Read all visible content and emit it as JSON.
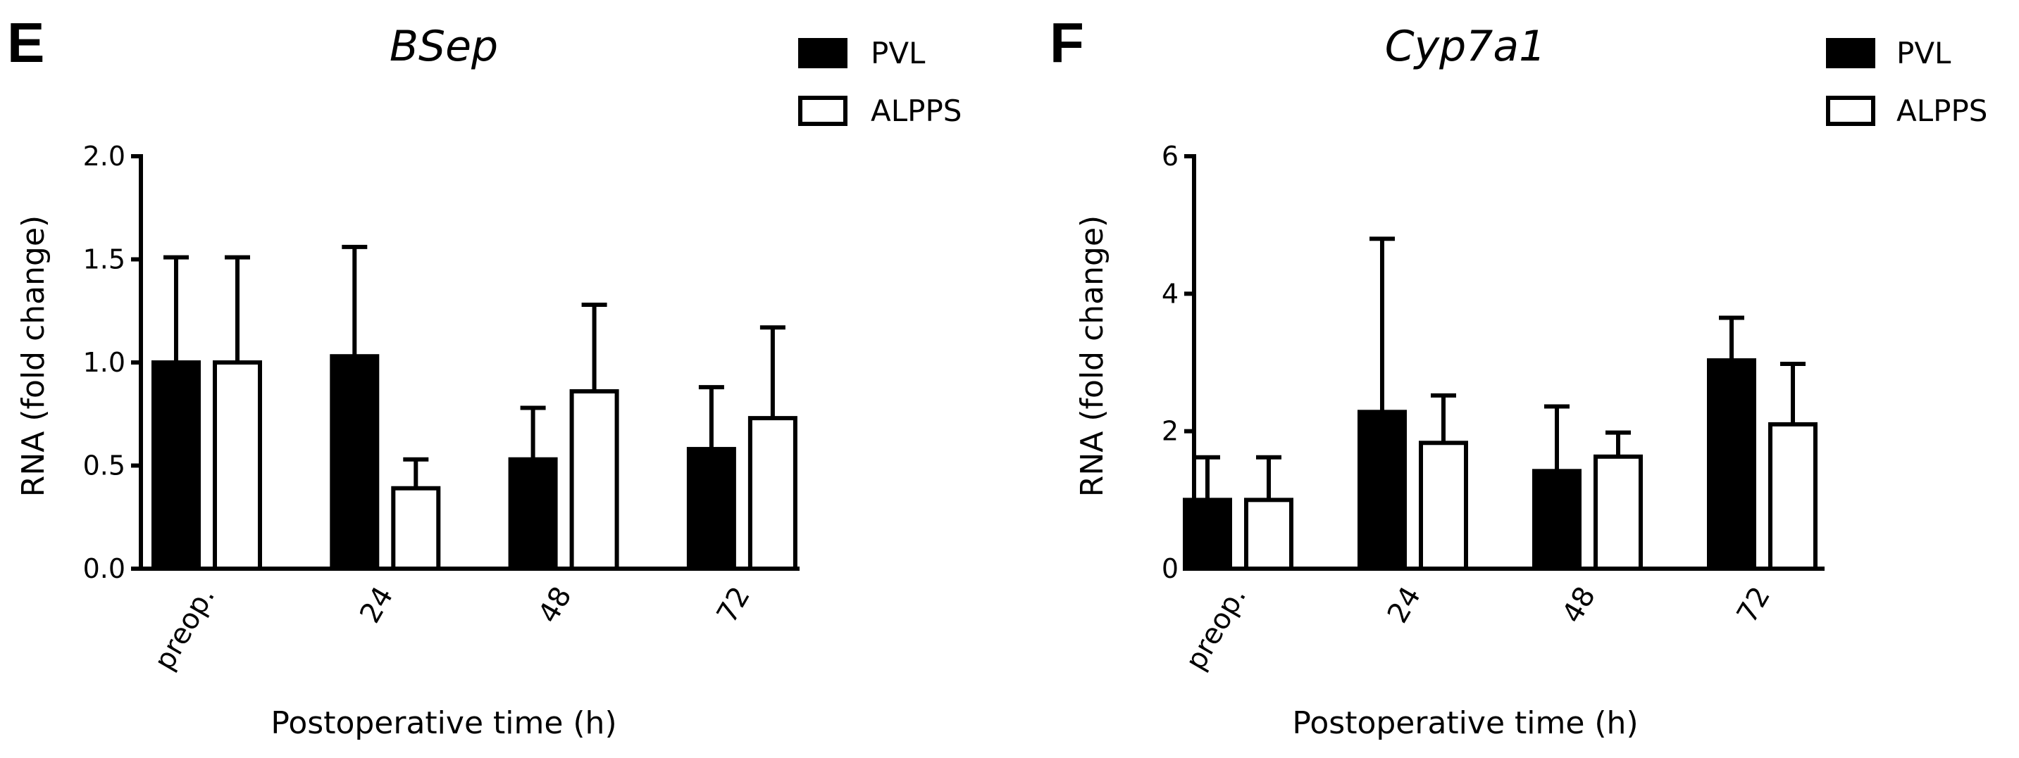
{
  "chart_data": [
    {
      "type": "bar",
      "panel_label": "E",
      "title": "BSep",
      "xlabel": "Postoperative time (h)",
      "ylabel": "RNA (fold change)",
      "ylim": [
        0,
        2.0
      ],
      "yticks": [
        "0.0",
        "0.5",
        "1.0",
        "1.5",
        "2.0"
      ],
      "categories": [
        "preop.",
        "24",
        "48",
        "72"
      ],
      "series": [
        {
          "name": "PVL",
          "color": "#000000",
          "values": [
            1.0,
            1.03,
            0.53,
            0.58
          ],
          "error": [
            0.51,
            0.53,
            0.25,
            0.3
          ]
        },
        {
          "name": "ALPPS",
          "color": "#ffffff",
          "values": [
            1.0,
            0.39,
            0.86,
            0.73
          ],
          "error": [
            0.51,
            0.14,
            0.42,
            0.44
          ]
        }
      ]
    },
    {
      "type": "bar",
      "panel_label": "F",
      "title": "Cyp7a1",
      "xlabel": "Postoperative time (h)",
      "ylabel": "RNA (fold change)",
      "ylim": [
        0,
        6
      ],
      "yticks": [
        "0",
        "2",
        "4",
        "6"
      ],
      "categories": [
        "preop.",
        "24",
        "48",
        "72"
      ],
      "series": [
        {
          "name": "PVL",
          "color": "#000000",
          "values": [
            1.0,
            2.28,
            1.42,
            3.03
          ],
          "error": [
            0.62,
            2.52,
            0.94,
            0.62
          ]
        },
        {
          "name": "ALPPS",
          "color": "#ffffff",
          "values": [
            1.0,
            1.83,
            1.63,
            2.1
          ],
          "error": [
            0.62,
            0.69,
            0.35,
            0.88
          ]
        }
      ]
    }
  ]
}
